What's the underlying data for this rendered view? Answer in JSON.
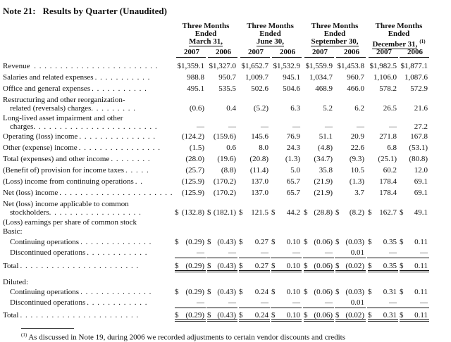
{
  "title": {
    "note": "Note 21:",
    "text": "Results by Quarter (Unaudited)"
  },
  "columns": [
    {
      "line1": "Three Months",
      "line2": "Ended",
      "line3": "March 31,"
    },
    {
      "line1": "Three Months",
      "line2": "Ended",
      "line3": "June 30,"
    },
    {
      "line1": "Three Months",
      "line2": "Ended",
      "line3": "September 30,"
    },
    {
      "line1": "Three Months",
      "line2": "Ended",
      "line3": "December 31,",
      "sup": "(1)"
    }
  ],
  "years": [
    "2007",
    "2006",
    "2007",
    "2006",
    "2007",
    "2006",
    "2007",
    "2006"
  ],
  "rows": [
    {
      "label": "Revenue",
      "dots": " . . . . . . . . . . . . . . . . . . . . . . . .",
      "vals": [
        "$1,359.1",
        "$1,327.0",
        "$1,652.7",
        "$1,532.9",
        "$1,559.9",
        "$1,453.8",
        "$1,982.5",
        "$1,877.1"
      ]
    },
    {
      "label": "Salaries and related expenses",
      "dots": ". . . . . . . . . . .",
      "vals": [
        "988.8",
        "950.7",
        "1,009.7",
        "945.1",
        "1,034.7",
        "960.7",
        "1,106.0",
        "1,087.6"
      ]
    },
    {
      "label": "Office and general expenses",
      "dots": ". . . . . . . . . . .",
      "vals": [
        "495.1",
        "535.5",
        "502.6",
        "504.6",
        "468.9",
        "466.0",
        "578.2",
        "572.9"
      ]
    },
    {
      "label": "Restructuring and other reorganization-",
      "label2": "related (reversals) charges",
      "dots": ". . . . . . . . .",
      "vals": [
        "(0.6)",
        "0.4",
        "(5.2)",
        "6.3",
        "5.2",
        "6.2",
        "26.5",
        "21.6"
      ]
    },
    {
      "label": "Long-lived asset impairment and other",
      "label2": "charges",
      "dots": ". . . . . . . . . . . . . . . . . . . . . . . .",
      "vals": [
        "—",
        "—",
        "—",
        "—",
        "—",
        "—",
        "—",
        "27.2"
      ]
    },
    {
      "label": "Operating (loss) income",
      "dots": ". . . . . . . . . . . . . . .",
      "vals": [
        "(124.2)",
        "(159.6)",
        "145.6",
        "76.9",
        "51.1",
        "20.9",
        "271.8",
        "167.8"
      ]
    },
    {
      "label": "Other (expense) income",
      "dots": ". . . . . . . . . . . . . . . .",
      "vals": [
        "(1.5)",
        "0.6",
        "8.0",
        "24.3",
        "(4.8)",
        "22.6",
        "6.8",
        "(53.1)"
      ]
    },
    {
      "label": "Total (expenses) and other income",
      "dots": ". . . . . . . .",
      "vals": [
        "(28.0)",
        "(19.6)",
        "(20.8)",
        "(1.3)",
        "(34.7)",
        "(9.3)",
        "(25.1)",
        "(80.8)"
      ]
    },
    {
      "label": "(Benefit of) provision for income taxes",
      "dots": ". . . . .",
      "vals": [
        "(25.7)",
        "(8.8)",
        "(11.4)",
        "5.0",
        "35.8",
        "10.5",
        "60.2",
        "12.0"
      ]
    },
    {
      "label": "(Loss) income from continuing operations",
      "dots": ". .",
      "vals": [
        "(125.9)",
        "(170.2)",
        "137.0",
        "65.7",
        "(21.9)",
        "(1.3)",
        "178.4",
        "69.1"
      ]
    },
    {
      "label": "Net (loss) income",
      "dots": ". . . . . . . . . . . . . . . . . . . . . .",
      "vals": [
        "(125.9)",
        "(170.2)",
        "137.0",
        "65.7",
        "(21.9)",
        "3.7",
        "178.4",
        "69.1"
      ]
    },
    {
      "label": "Net (loss) income applicable to common",
      "label2": "stockholders",
      "dots": ". . . . . . . . . . . . . . . . . .",
      "vals": [
        "(132.8)",
        "(182.1)",
        "121.5",
        "44.2",
        "(28.8)",
        "(8.2)",
        "162.7",
        "49.1"
      ],
      "dollars": true
    }
  ],
  "eps": {
    "heading": "(Loss) earnings per share of common stock",
    "basic_label": "Basic:",
    "basic": [
      {
        "label": "Continuing operations",
        "dots": ". . . . . . . . . . . . . .",
        "vals": [
          "(0.29)",
          "(0.43)",
          "0.27",
          "0.10",
          "(0.06)",
          "(0.03)",
          "0.35",
          "0.11"
        ],
        "dollars": true
      },
      {
        "label": "Discontinued operations",
        "dots": ". . . . . . . . . . . .",
        "vals": [
          "—",
          "—",
          "—",
          "—",
          "—",
          "0.01",
          "—",
          "—"
        ]
      }
    ],
    "basic_total": {
      "label": "Total",
      "dots": ". . . . . . . . . . . . . . . . . . . . . . .",
      "vals": [
        "(0.29)",
        "(0.43)",
        "0.27",
        "0.10",
        "(0.06)",
        "(0.02)",
        "0.35",
        "0.11"
      ]
    },
    "diluted_label": "Diluted:",
    "diluted": [
      {
        "label": "Continuing operations",
        "dots": ". . . . . . . . . . . . . .",
        "vals": [
          "(0.29)",
          "(0.43)",
          "0.24",
          "0.10",
          "(0.06)",
          "(0.03)",
          "0.31",
          "0.11"
        ],
        "dollars": true
      },
      {
        "label": "Discontinued operations",
        "dots": ". . . . . . . . . . . .",
        "vals": [
          "—",
          "—",
          "—",
          "—",
          "—",
          "0.01",
          "—",
          "—"
        ]
      }
    ],
    "diluted_total": {
      "label": "Total",
      "dots": ". . . . . . . . . . . . . . . . . . . . . . .",
      "vals": [
        "(0.29)",
        "(0.43)",
        "0.24",
        "0.10",
        "(0.06)",
        "(0.02)",
        "0.31",
        "0.11"
      ]
    }
  },
  "dollar_sign": "$",
  "footnote": {
    "mark": "(1)",
    "text": "As discussed in Note 19, during 2006 we recorded adjustments to certain vendor discounts and credits"
  }
}
